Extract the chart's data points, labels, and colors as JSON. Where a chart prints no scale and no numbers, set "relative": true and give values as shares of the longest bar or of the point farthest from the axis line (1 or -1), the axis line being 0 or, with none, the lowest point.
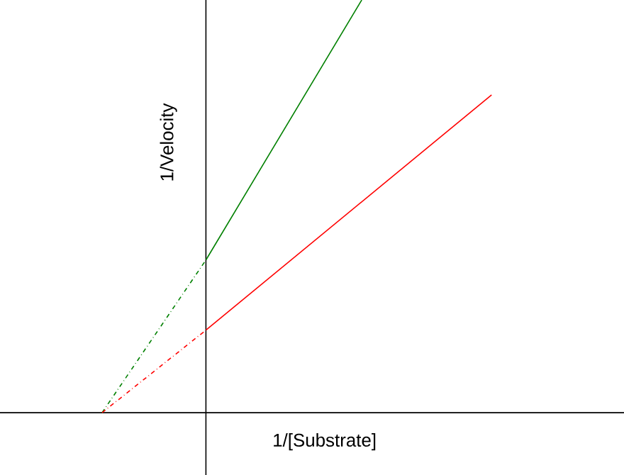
{
  "chart_data": {
    "type": "line",
    "relative": true,
    "xlabel": "1/[Substrate]",
    "ylabel": "1/Velocity",
    "marker": "none",
    "categories": [
      null,
      null,
      null,
      null,
      null,
      null,
      null,
      null,
      null,
      null,
      null,
      null,
      null,
      null,
      null,
      null
    ],
    "series": [
      {
        "color": "#008000",
        "values": [
          0,
          null,
          null,
          null,
          0.37,
          null,
          null,
          null,
          null,
          null,
          null,
          null,
          null,
          null,
          null,
          null
        ],
        "line_style": "dashed"
      },
      {
        "color": "#008000",
        "values": [
          null,
          null,
          null,
          null,
          0.37,
          null,
          null,
          null,
          null,
          null,
          1,
          null,
          null,
          null,
          null,
          null
        ],
        "line_style": "solid"
      },
      {
        "color": "#ff0000",
        "values": [
          0,
          null,
          null,
          null,
          0.2,
          null,
          null,
          null,
          null,
          null,
          null,
          null,
          null,
          null,
          null,
          null
        ],
        "line_style": "dashed"
      },
      {
        "color": "#ff0000",
        "values": [
          null,
          null,
          null,
          null,
          0.2,
          null,
          null,
          null,
          null,
          null,
          null,
          null,
          null,
          null,
          null,
          0.77
        ],
        "line_style": "solid"
      }
    ]
  }
}
